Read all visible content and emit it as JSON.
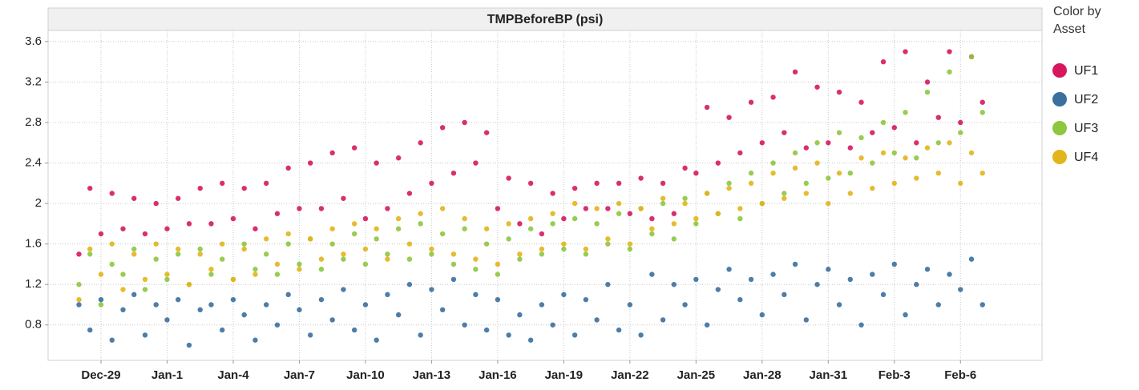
{
  "chart_data": {
    "type": "scatter",
    "title": "TMPBeforeBP (psi)",
    "legend_title": "Color by Asset",
    "legend_position": "right",
    "grid": true,
    "xlim": [
      -2.4,
      42.7
    ],
    "ylim": [
      0.45,
      3.71
    ],
    "xticks": [
      {
        "value": 0,
        "label": "Dec-29"
      },
      {
        "value": 3,
        "label": "Jan-1"
      },
      {
        "value": 6,
        "label": "Jan-4"
      },
      {
        "value": 9,
        "label": "Jan-7"
      },
      {
        "value": 12,
        "label": "Jan-10"
      },
      {
        "value": 15,
        "label": "Jan-13"
      },
      {
        "value": 18,
        "label": "Jan-16"
      },
      {
        "value": 21,
        "label": "Jan-19"
      },
      {
        "value": 24,
        "label": "Jan-22"
      },
      {
        "value": 27,
        "label": "Jan-25"
      },
      {
        "value": 30,
        "label": "Jan-28"
      },
      {
        "value": 33,
        "label": "Jan-31"
      },
      {
        "value": 36,
        "label": "Feb-3"
      },
      {
        "value": 39,
        "label": "Feb-6"
      }
    ],
    "yticks": [
      0.8,
      1.2,
      1.6,
      2,
      2.4,
      2.8,
      3.2,
      3.6
    ],
    "x": [
      -1,
      -0.5,
      0,
      0.5,
      1,
      1.5,
      2,
      2.5,
      3,
      3.5,
      4,
      4.5,
      5,
      5.5,
      6,
      6.5,
      7,
      7.5,
      8,
      8.5,
      9,
      9.5,
      10,
      10.5,
      11,
      11.5,
      12,
      12.5,
      13,
      13.5,
      14,
      14.5,
      15,
      15.5,
      16,
      16.5,
      17,
      17.5,
      18,
      18.5,
      19,
      19.5,
      20,
      20.5,
      21,
      21.5,
      22,
      22.5,
      23,
      23.5,
      24,
      24.5,
      25,
      25.5,
      26,
      26.5,
      27,
      27.5,
      28,
      28.5,
      29,
      29.5,
      30,
      30.5,
      31,
      31.5,
      32,
      32.5,
      33,
      33.5,
      34,
      34.5,
      35,
      35.5,
      36,
      36.5,
      37,
      37.5,
      38,
      38.5,
      39,
      39.5,
      40
    ],
    "series": [
      {
        "name": "UF1",
        "color": "#d6175f",
        "values": [
          1.5,
          2.15,
          1.7,
          2.1,
          1.75,
          2.05,
          1.7,
          2.0,
          1.75,
          2.05,
          1.8,
          2.15,
          1.8,
          2.2,
          1.85,
          2.15,
          1.75,
          2.2,
          1.9,
          2.35,
          1.95,
          2.4,
          1.95,
          2.5,
          2.05,
          2.55,
          1.85,
          2.4,
          1.95,
          2.45,
          2.1,
          2.6,
          2.2,
          2.75,
          2.3,
          2.8,
          2.4,
          2.7,
          1.95,
          2.25,
          1.8,
          2.2,
          1.7,
          2.1,
          1.85,
          2.15,
          1.95,
          2.2,
          1.95,
          2.2,
          1.9,
          2.25,
          1.85,
          2.2,
          1.9,
          2.35,
          2.3,
          2.95,
          2.4,
          2.85,
          2.5,
          3.0,
          2.6,
          3.05,
          2.7,
          3.3,
          2.55,
          3.15,
          2.6,
          3.1,
          2.55,
          3.0,
          2.7,
          3.4,
          2.75,
          3.5,
          2.6,
          3.2,
          2.85,
          3.5,
          2.8,
          3.45,
          3.0
        ]
      },
      {
        "name": "UF2",
        "color": "#3a6f9e",
        "values": [
          1.0,
          0.75,
          1.05,
          0.65,
          0.95,
          1.1,
          0.7,
          1.0,
          0.85,
          1.05,
          0.6,
          0.95,
          1.0,
          0.75,
          1.05,
          0.9,
          0.65,
          1.0,
          0.8,
          1.1,
          0.95,
          0.7,
          1.05,
          0.85,
          1.15,
          0.75,
          1.0,
          0.65,
          1.1,
          0.9,
          1.2,
          0.7,
          1.15,
          0.95,
          1.25,
          0.8,
          1.1,
          0.75,
          1.05,
          0.7,
          0.9,
          0.65,
          1.0,
          0.8,
          1.1,
          0.7,
          1.05,
          0.85,
          1.2,
          0.75,
          1.0,
          0.7,
          1.3,
          0.85,
          1.2,
          1.0,
          1.25,
          0.8,
          1.15,
          1.35,
          1.05,
          1.25,
          0.9,
          1.3,
          1.1,
          1.4,
          0.85,
          1.2,
          1.35,
          1.0,
          1.25,
          0.8,
          1.3,
          1.1,
          1.4,
          0.9,
          1.2,
          1.35,
          1.0,
          1.3,
          1.15,
          1.45,
          1.0
        ]
      },
      {
        "name": "UF3",
        "color": "#8dc63f",
        "values": [
          1.2,
          1.5,
          1.0,
          1.4,
          1.3,
          1.55,
          1.15,
          1.45,
          1.25,
          1.5,
          1.2,
          1.55,
          1.3,
          1.45,
          1.25,
          1.6,
          1.35,
          1.5,
          1.3,
          1.6,
          1.4,
          1.65,
          1.35,
          1.6,
          1.45,
          1.7,
          1.4,
          1.65,
          1.5,
          1.75,
          1.45,
          1.8,
          1.5,
          1.7,
          1.4,
          1.75,
          1.35,
          1.6,
          1.3,
          1.65,
          1.45,
          1.75,
          1.5,
          1.8,
          1.55,
          1.85,
          1.5,
          1.8,
          1.6,
          1.9,
          1.55,
          1.95,
          1.7,
          2.0,
          1.65,
          2.05,
          1.8,
          2.1,
          1.9,
          2.2,
          1.85,
          2.3,
          2.0,
          2.4,
          2.1,
          2.5,
          2.2,
          2.6,
          2.25,
          2.7,
          2.3,
          2.65,
          2.4,
          2.8,
          2.5,
          2.9,
          2.45,
          3.1,
          2.6,
          3.3,
          2.7,
          3.45,
          2.9
        ]
      },
      {
        "name": "UF4",
        "color": "#e2b51a",
        "values": [
          1.05,
          1.55,
          1.3,
          1.6,
          1.15,
          1.5,
          1.25,
          1.6,
          1.3,
          1.55,
          1.2,
          1.5,
          1.35,
          1.6,
          1.25,
          1.55,
          1.3,
          1.65,
          1.4,
          1.7,
          1.35,
          1.65,
          1.45,
          1.75,
          1.5,
          1.8,
          1.55,
          1.75,
          1.45,
          1.85,
          1.6,
          1.9,
          1.55,
          1.95,
          1.5,
          1.85,
          1.45,
          1.75,
          1.4,
          1.8,
          1.5,
          1.85,
          1.55,
          1.9,
          1.6,
          2.0,
          1.55,
          1.95,
          1.65,
          2.0,
          1.6,
          1.95,
          1.75,
          2.05,
          1.8,
          2.0,
          1.85,
          2.1,
          1.9,
          2.15,
          1.95,
          2.2,
          2.0,
          2.3,
          2.05,
          2.35,
          2.1,
          2.4,
          2.0,
          2.3,
          2.1,
          2.45,
          2.15,
          2.5,
          2.2,
          2.45,
          2.25,
          2.55,
          2.3,
          2.6,
          2.2,
          2.5,
          2.3
        ]
      }
    ]
  }
}
